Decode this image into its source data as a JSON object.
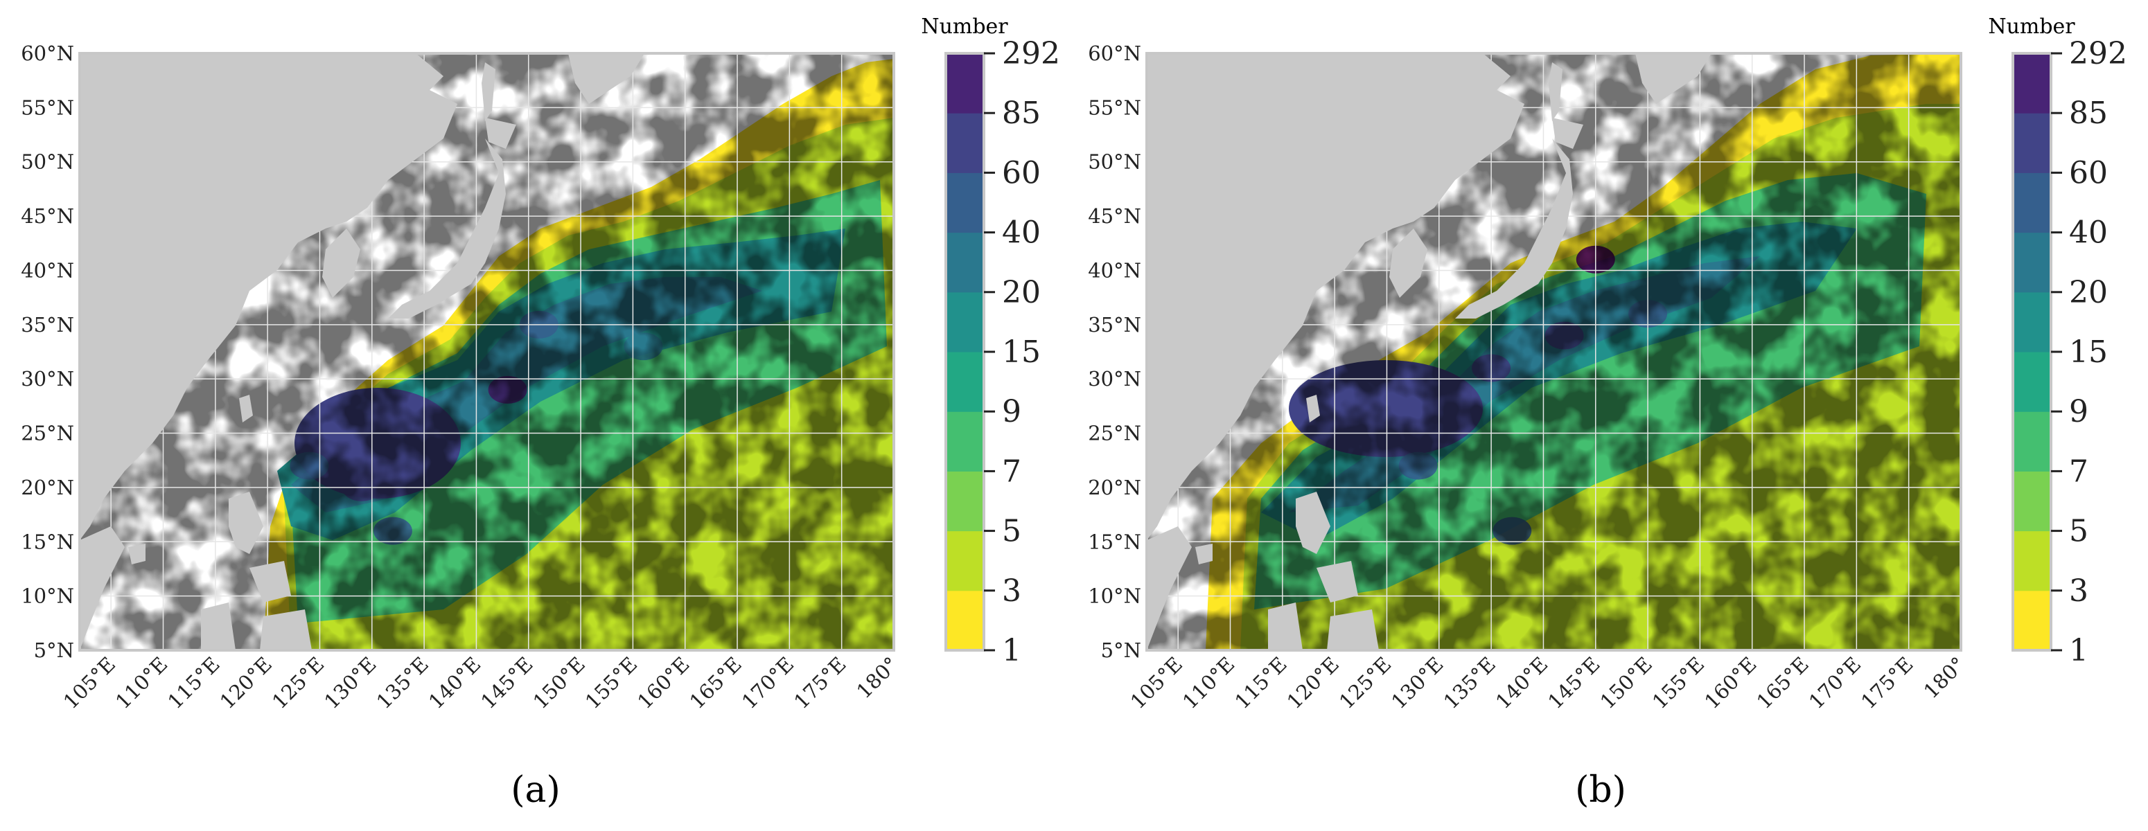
{
  "colors": {
    "land": "#c9c9c9",
    "ocean": "#ffffff",
    "frame": "#c7c7c7",
    "grid": "#e6e6e6"
  },
  "colorbar": {
    "title": "Number",
    "ticks": [
      "1",
      "3",
      "5",
      "7",
      "9",
      "15",
      "20",
      "40",
      "60",
      "85",
      "292"
    ],
    "colors": [
      "#fde725",
      "#bddf26",
      "#7ad151",
      "#44bf70",
      "#22a884",
      "#21918c",
      "#2a788e",
      "#355f8d",
      "#414487",
      "#482475",
      "#440154"
    ]
  },
  "chart_data": [
    {
      "type": "heatmap",
      "panel_label": "(a)",
      "xlim": [
        102,
        180
      ],
      "ylim": [
        5,
        60
      ],
      "x_ticks": [
        "105°E",
        "110°E",
        "115°E",
        "120°E",
        "125°E",
        "130°E",
        "135°E",
        "140°E",
        "145°E",
        "150°E",
        "155°E",
        "160°E",
        "165°E",
        "170°E",
        "175°E",
        "180°"
      ],
      "y_ticks": [
        "5°N",
        "10°N",
        "15°N",
        "20°N",
        "25°N",
        "30°N",
        "35°N",
        "40°N",
        "45°N",
        "50°N",
        "55°N",
        "60°N"
      ],
      "x_tick_values": [
        105,
        110,
        115,
        120,
        125,
        130,
        135,
        140,
        145,
        150,
        155,
        160,
        165,
        170,
        175,
        180
      ],
      "y_tick_values": [
        5,
        10,
        15,
        20,
        25,
        30,
        35,
        40,
        45,
        50,
        55,
        60
      ],
      "hotspots": [
        {
          "lon": 143,
          "lat": 29,
          "level": 9
        },
        {
          "lon": 129,
          "lat": 20,
          "level": 8
        },
        {
          "lon": 132,
          "lat": 16,
          "level": 7
        },
        {
          "lon": 124,
          "lat": 22,
          "level": 7
        },
        {
          "lon": 146,
          "lat": 35,
          "level": 7
        },
        {
          "lon": 156,
          "lat": 33,
          "level": 6
        }
      ]
    },
    {
      "type": "heatmap",
      "panel_label": "(b)",
      "xlim": [
        102,
        180
      ],
      "ylim": [
        5,
        60
      ],
      "x_ticks": [
        "105°E",
        "110°E",
        "115°E",
        "120°E",
        "125°E",
        "130°E",
        "135°E",
        "140°E",
        "145°E",
        "150°E",
        "155°E",
        "160°E",
        "165°E",
        "170°E",
        "175°E",
        "180°"
      ],
      "y_ticks": [
        "5°N",
        "10°N",
        "15°N",
        "20°N",
        "25°N",
        "30°N",
        "35°N",
        "40°N",
        "45°N",
        "50°N",
        "55°N",
        "60°N"
      ],
      "x_tick_values": [
        105,
        110,
        115,
        120,
        125,
        130,
        135,
        140,
        145,
        150,
        155,
        160,
        165,
        170,
        175,
        180
      ],
      "y_tick_values": [
        5,
        10,
        15,
        20,
        25,
        30,
        35,
        40,
        45,
        50,
        55,
        60
      ],
      "hotspots": [
        {
          "lon": 145,
          "lat": 41,
          "level": 10
        },
        {
          "lon": 135,
          "lat": 31,
          "level": 8
        },
        {
          "lon": 142,
          "lat": 34,
          "level": 8
        },
        {
          "lon": 128,
          "lat": 22,
          "level": 7
        },
        {
          "lon": 150,
          "lat": 36,
          "level": 7
        },
        {
          "lon": 137,
          "lat": 16,
          "level": 7
        }
      ]
    }
  ]
}
